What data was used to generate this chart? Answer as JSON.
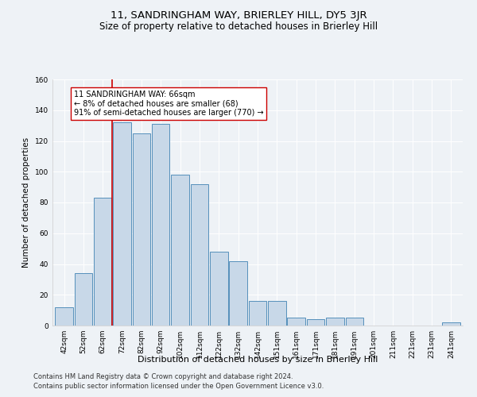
{
  "title": "11, SANDRINGHAM WAY, BRIERLEY HILL, DY5 3JR",
  "subtitle": "Size of property relative to detached houses in Brierley Hill",
  "xlabel": "Distribution of detached houses by size in Brierley Hill",
  "ylabel": "Number of detached properties",
  "categories": [
    "42sqm",
    "52sqm",
    "62sqm",
    "72sqm",
    "82sqm",
    "92sqm",
    "102sqm",
    "112sqm",
    "122sqm",
    "132sqm",
    "142sqm",
    "151sqm",
    "161sqm",
    "171sqm",
    "181sqm",
    "191sqm",
    "201sqm",
    "211sqm",
    "221sqm",
    "231sqm",
    "241sqm"
  ],
  "bar_heights": [
    12,
    34,
    83,
    132,
    125,
    131,
    98,
    92,
    48,
    42,
    16,
    16,
    5,
    4,
    5,
    5,
    0,
    0,
    0,
    0,
    2
  ],
  "bar_color": "#c8d8e8",
  "bar_edge_color": "#5590bb",
  "bar_width": 0.92,
  "vline_x": 2.5,
  "vline_color": "#cc0000",
  "annotation_text": "11 SANDRINGHAM WAY: 66sqm\n← 8% of detached houses are smaller (68)\n91% of semi-detached houses are larger (770) →",
  "annotation_box_color": "#ffffff",
  "annotation_box_edge_color": "#cc0000",
  "ylim": [
    0,
    160
  ],
  "yticks": [
    0,
    20,
    40,
    60,
    80,
    100,
    120,
    140,
    160
  ],
  "background_color": "#eef2f6",
  "plot_background": "#eef2f6",
  "footer_line1": "Contains HM Land Registry data © Crown copyright and database right 2024.",
  "footer_line2": "Contains public sector information licensed under the Open Government Licence v3.0.",
  "title_fontsize": 9.5,
  "subtitle_fontsize": 8.5,
  "xlabel_fontsize": 8,
  "ylabel_fontsize": 7.5,
  "tick_fontsize": 6.5,
  "annotation_fontsize": 7,
  "footer_fontsize": 6
}
